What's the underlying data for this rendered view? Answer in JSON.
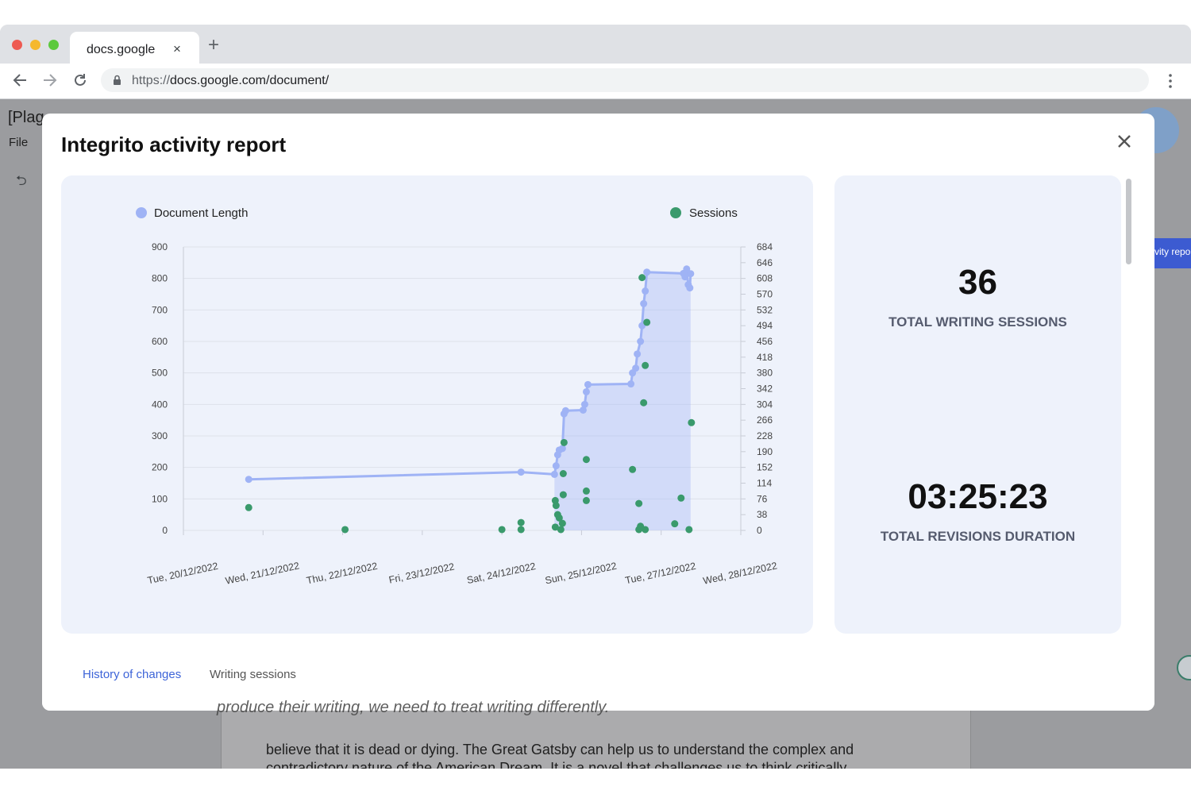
{
  "browser": {
    "tab_title": "docs.google",
    "tab_close": "×",
    "new_tab": "+",
    "url_protocol": "https://",
    "url_rest": "docs.google.com/document/"
  },
  "document": {
    "title_partial": "[Plag",
    "menu_file": "File",
    "undo_icon": "⮌",
    "side_button_label": "vity repo",
    "lines": [
      "produce their writing, we need to treat writing differently.",
      "believe that it is dead or dying. The Great Gatsby can help us to understand the complex and",
      "contradictory nature of the American Dream. It is a novel that challenges us to think critically"
    ]
  },
  "modal": {
    "title": "Integrito activity report",
    "stats": {
      "sessions_value": "36",
      "sessions_label": "TOTAL WRITING SESSIONS",
      "duration_value": "03:25:23",
      "duration_label": "TOTAL REVISIONS DURATION"
    },
    "tabs": [
      {
        "label": "History of changes",
        "active": true
      },
      {
        "label": "Writing sessions",
        "active": false
      }
    ]
  },
  "colors": {
    "length_series": "#9fb3f5",
    "sessions_series": "#3a9a6c",
    "active_tab": "#3d64d8",
    "inactive_tab": "#555555"
  },
  "chart_data": {
    "type": "line",
    "title": "",
    "legend": [
      "Document Length",
      "Sessions"
    ],
    "x_ticks": [
      "Tue, 20/12/2022",
      "Wed, 21/12/2022",
      "Thu, 22/12/2022",
      "Fri, 23/12/2022",
      "Sat, 24/12/2022",
      "Sun, 25/12/2022",
      "Tue, 27/12/2022",
      "Wed, 28/12/2022"
    ],
    "y_left_ticks": [
      0,
      100,
      200,
      300,
      400,
      500,
      600,
      700,
      800,
      900
    ],
    "y_left_range": [
      0,
      900
    ],
    "y_right_ticks": [
      0,
      38,
      76,
      114,
      152,
      190,
      228,
      266,
      304,
      342,
      380,
      418,
      456,
      494,
      532,
      570,
      608,
      646,
      684
    ],
    "y_right_range": [
      0,
      684
    ],
    "series": [
      {
        "name": "Document Length",
        "axis": "left",
        "points": [
          [
            0.82,
            162
          ],
          [
            4.24,
            185
          ],
          [
            4.66,
            178
          ],
          [
            4.68,
            205
          ],
          [
            4.7,
            240
          ],
          [
            4.72,
            255
          ],
          [
            4.76,
            260
          ],
          [
            4.78,
            370
          ],
          [
            4.8,
            380
          ],
          [
            5.02,
            382
          ],
          [
            5.04,
            400
          ],
          [
            5.06,
            440
          ],
          [
            5.08,
            463
          ],
          [
            5.62,
            465
          ],
          [
            5.64,
            500
          ],
          [
            5.68,
            515
          ],
          [
            5.7,
            560
          ],
          [
            5.74,
            600
          ],
          [
            5.76,
            650
          ],
          [
            5.78,
            720
          ],
          [
            5.8,
            760
          ],
          [
            5.82,
            820
          ],
          [
            6.28,
            816
          ],
          [
            6.3,
            805
          ],
          [
            6.32,
            830
          ],
          [
            6.34,
            780
          ],
          [
            6.36,
            770
          ],
          [
            6.37,
            815
          ]
        ]
      },
      {
        "name": "Sessions",
        "axis": "right",
        "points": [
          [
            0.82,
            55
          ],
          [
            2.03,
            2
          ],
          [
            4.0,
            2
          ],
          [
            4.24,
            19
          ],
          [
            4.24,
            2
          ],
          [
            4.67,
            8
          ],
          [
            4.67,
            72
          ],
          [
            4.68,
            60
          ],
          [
            4.7,
            38
          ],
          [
            4.72,
            30
          ],
          [
            4.74,
            2
          ],
          [
            4.76,
            17
          ],
          [
            4.77,
            86
          ],
          [
            4.77,
            137
          ],
          [
            4.78,
            212
          ],
          [
            5.06,
            171
          ],
          [
            5.06,
            95
          ],
          [
            5.06,
            72
          ],
          [
            5.64,
            147
          ],
          [
            5.72,
            65
          ],
          [
            5.72,
            2
          ],
          [
            5.74,
            10
          ],
          [
            5.76,
            610
          ],
          [
            5.78,
            308
          ],
          [
            5.8,
            398
          ],
          [
            5.8,
            2
          ],
          [
            5.82,
            502
          ],
          [
            6.17,
            16
          ],
          [
            6.25,
            78
          ],
          [
            6.35,
            2
          ],
          [
            6.38,
            260
          ]
        ]
      }
    ]
  }
}
